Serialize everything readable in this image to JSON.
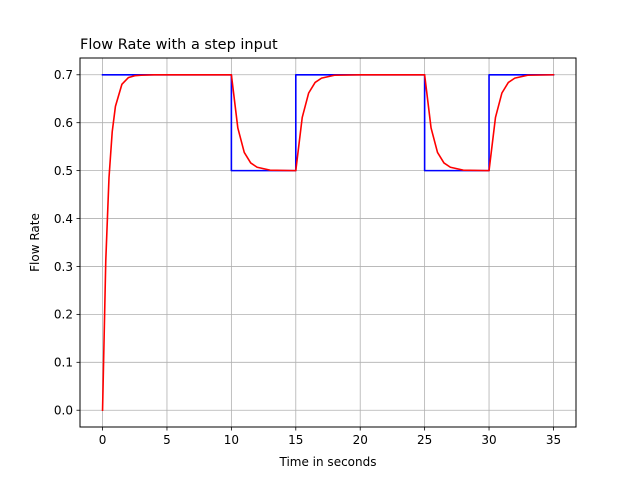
{
  "chart_data": {
    "type": "line",
    "title": "Flow Rate with a step input",
    "xlabel": "Time in seconds",
    "ylabel": "Flow Rate",
    "xlim": [
      -1.75,
      36.75
    ],
    "ylim": [
      -0.035,
      0.735
    ],
    "grid": true,
    "x_ticks": [
      0,
      5,
      10,
      15,
      20,
      25,
      30,
      35
    ],
    "x_tick_labels": [
      "0",
      "5",
      "10",
      "15",
      "20",
      "25",
      "30",
      "35"
    ],
    "y_ticks": [
      0.0,
      0.1,
      0.2,
      0.3,
      0.4,
      0.5,
      0.6,
      0.7
    ],
    "y_tick_labels": [
      "0.0",
      "0.1",
      "0.2",
      "0.3",
      "0.4",
      "0.5",
      "0.6",
      "0.7"
    ],
    "series": [
      {
        "color": "#0000ff",
        "kind": "step_input",
        "x": [
          0,
          10,
          10,
          15,
          15,
          25,
          25,
          30,
          30,
          35
        ],
        "y": [
          0.7,
          0.7,
          0.5,
          0.5,
          0.7,
          0.7,
          0.5,
          0.5,
          0.7,
          0.7
        ]
      },
      {
        "color": "#ff0000",
        "kind": "first_order_response",
        "x": [
          0,
          0.25,
          0.5,
          0.75,
          1.0,
          1.5,
          2.0,
          2.5,
          3.0,
          4.0,
          5.0,
          10.0,
          10.5,
          11.0,
          11.5,
          12.0,
          13.0,
          15.0,
          15.5,
          16.0,
          16.5,
          17.0,
          18.0,
          20.0,
          25.0,
          25.5,
          26.0,
          26.5,
          27.0,
          28.0,
          30.0,
          30.5,
          31.0,
          31.5,
          32.0,
          33.0,
          35.0
        ],
        "y": [
          0.0,
          0.312,
          0.485,
          0.581,
          0.634,
          0.68,
          0.694,
          0.698,
          0.699,
          0.7,
          0.7,
          0.7,
          0.589,
          0.538,
          0.516,
          0.507,
          0.501,
          0.5,
          0.611,
          0.662,
          0.684,
          0.693,
          0.699,
          0.7,
          0.7,
          0.589,
          0.538,
          0.516,
          0.507,
          0.501,
          0.5,
          0.611,
          0.662,
          0.684,
          0.693,
          0.699,
          0.7
        ]
      }
    ]
  }
}
